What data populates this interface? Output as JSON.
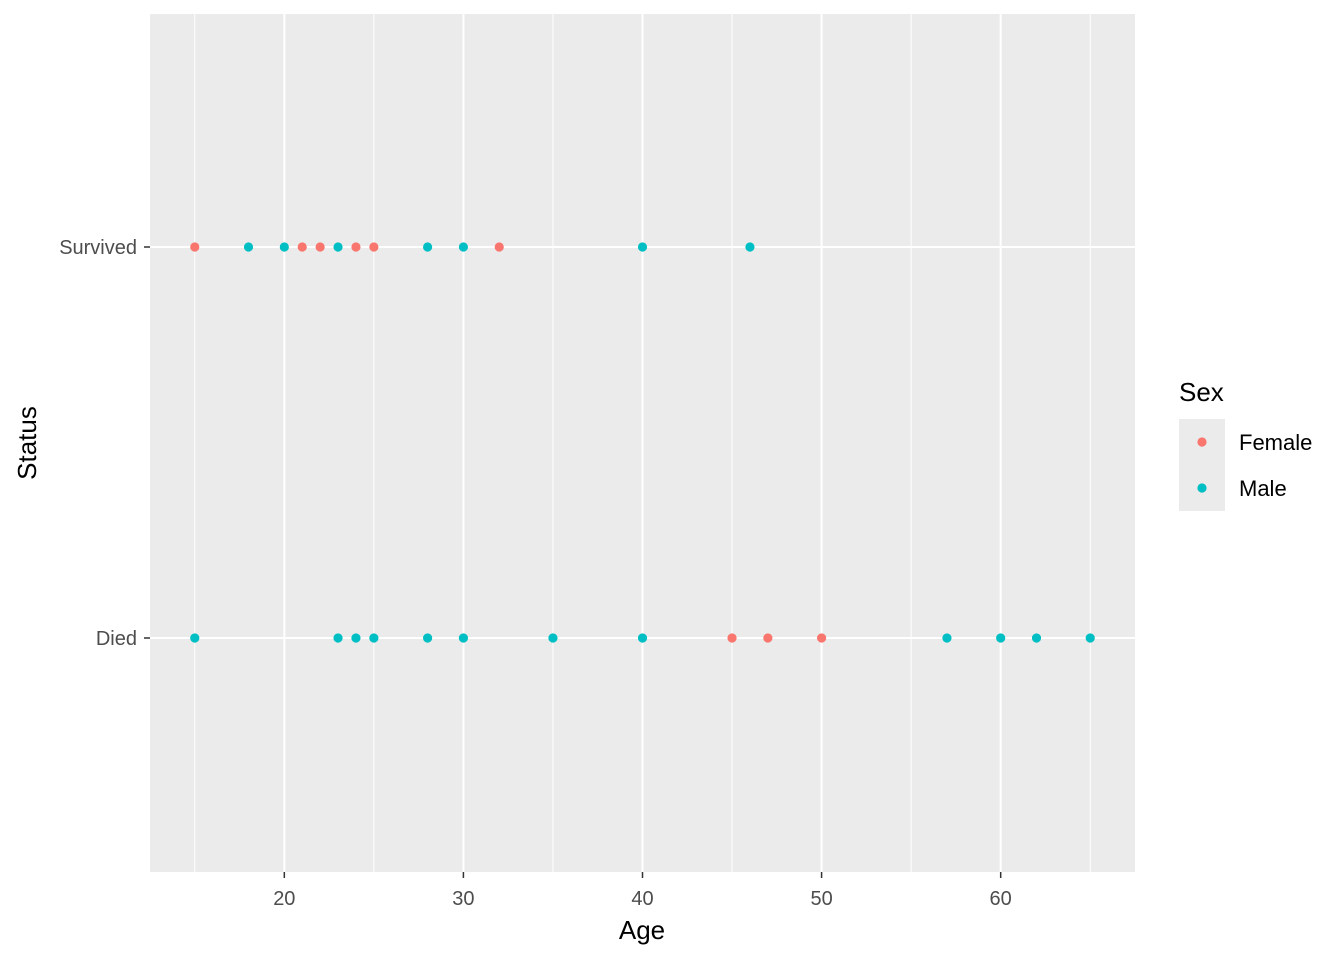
{
  "chart_data": {
    "type": "scatter",
    "xlabel": "Age",
    "ylabel": "Status",
    "categories": [
      "Died",
      "Survived"
    ],
    "xlim": [
      12.5,
      67.5
    ],
    "x_ticks": [
      20,
      30,
      40,
      50,
      60
    ],
    "grid": true,
    "legend": {
      "title": "Sex",
      "placement": "right",
      "entries": [
        {
          "name": "Female",
          "color": "#F8766D"
        },
        {
          "name": "Male",
          "color": "#00BFC4"
        }
      ]
    },
    "series": [
      {
        "name": "Female",
        "color": "#F8766D",
        "points": [
          {
            "x": 15,
            "y": "Survived"
          },
          {
            "x": 21,
            "y": "Survived"
          },
          {
            "x": 22,
            "y": "Survived"
          },
          {
            "x": 24,
            "y": "Survived"
          },
          {
            "x": 25,
            "y": "Survived"
          },
          {
            "x": 32,
            "y": "Survived"
          },
          {
            "x": 45,
            "y": "Died"
          },
          {
            "x": 47,
            "y": "Died"
          },
          {
            "x": 50,
            "y": "Died"
          }
        ]
      },
      {
        "name": "Male",
        "color": "#00BFC4",
        "points": [
          {
            "x": 18,
            "y": "Survived"
          },
          {
            "x": 20,
            "y": "Survived"
          },
          {
            "x": 23,
            "y": "Survived"
          },
          {
            "x": 28,
            "y": "Survived"
          },
          {
            "x": 30,
            "y": "Survived"
          },
          {
            "x": 40,
            "y": "Survived"
          },
          {
            "x": 46,
            "y": "Survived"
          },
          {
            "x": 15,
            "y": "Died"
          },
          {
            "x": 23,
            "y": "Died"
          },
          {
            "x": 24,
            "y": "Died"
          },
          {
            "x": 25,
            "y": "Died"
          },
          {
            "x": 28,
            "y": "Died"
          },
          {
            "x": 30,
            "y": "Died"
          },
          {
            "x": 35,
            "y": "Died"
          },
          {
            "x": 40,
            "y": "Died"
          },
          {
            "x": 57,
            "y": "Died"
          },
          {
            "x": 60,
            "y": "Died"
          },
          {
            "x": 62,
            "y": "Died"
          },
          {
            "x": 65,
            "y": "Died"
          }
        ]
      }
    ]
  }
}
